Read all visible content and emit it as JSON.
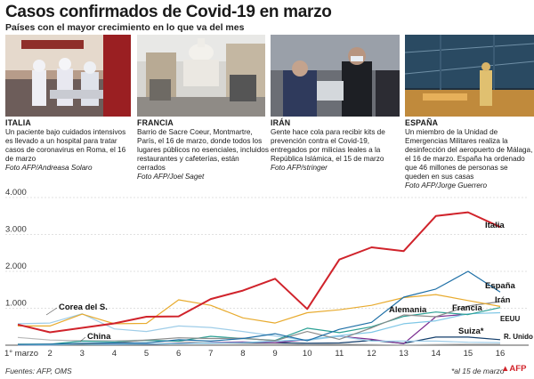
{
  "header": {
    "title": "Casos confirmados de Covid-19 en marzo",
    "subtitle": "Países con el mayor crecimiento en lo que va del mes"
  },
  "photos": [
    {
      "country": "ITALIA",
      "text": "Un paciente bajo cuidados intensivos es llevado a un hospital para tratar casos de coronavirus en Roma, el 16 de marzo",
      "credit": "Foto AFP/Andreasa Solaro"
    },
    {
      "country": "FRANCIA",
      "text": "Barrio de Sacre Coeur, Montmartre, París, el 16 de marzo, donde todos los lugares públicos no esenciales, incluidos restaurantes y cafeterías, están cerrados",
      "credit": "Foto AFP/Joel Saget"
    },
    {
      "country": "IRÁN",
      "text": "Gente hace cola para recibir kits de prevención contra el Covid-19, entregados por milicias leales a la República Islámica, el 15 de marzo",
      "credit": "Foto AFP/stringer"
    },
    {
      "country": "ESPAÑA",
      "text": "Un miembro de la Unidad de Emergencias Militares realiza la desinfección del aeropuerto de Málaga, el 16 de marzo. España ha ordenado que 46 millones de personas se queden en sus casas",
      "credit": "Foto AFP/Jorge Guerrero"
    }
  ],
  "chart_data": {
    "type": "line",
    "x": [
      "1° marzo",
      "2",
      "3",
      "4",
      "5",
      "6",
      "7",
      "8",
      "9",
      "10",
      "11",
      "12",
      "13",
      "14",
      "15",
      "16"
    ],
    "y_ticks": [
      "1.000",
      "2.000",
      "3.000",
      "4.000"
    ],
    "ylim": [
      0,
      4000
    ],
    "series": [
      {
        "name": "Italia",
        "color": "#d0232b",
        "values": [
          560,
          350,
          470,
          590,
          770,
          780,
          1250,
          1480,
          1800,
          980,
          2320,
          2650,
          2550,
          3500,
          3600,
          3200
        ]
      },
      {
        "name": "España",
        "color": "#1e6fa6",
        "values": [
          20,
          30,
          50,
          60,
          60,
          150,
          110,
          180,
          310,
          120,
          430,
          620,
          1300,
          1520,
          2000,
          1440
        ]
      },
      {
        "name": "Irán",
        "color": "#e8ab2f",
        "values": [
          520,
          520,
          840,
          580,
          590,
          1230,
          1080,
          740,
          600,
          880,
          960,
          1080,
          1290,
          1370,
          1210,
          1050
        ]
      },
      {
        "name": "Alemania",
        "color": "#8a8a8a",
        "values": [
          20,
          30,
          30,
          60,
          140,
          200,
          180,
          190,
          120,
          370,
          160,
          470,
          820,
          770,
          1060,
          1180
        ]
      },
      {
        "name": "Francia",
        "color": "#2ba094",
        "values": [
          30,
          30,
          110,
          90,
          130,
          110,
          240,
          180,
          130,
          460,
          340,
          500,
          780,
          900,
          830,
          1020
        ]
      },
      {
        "name": "EEUU",
        "color": "#7fc7e6",
        "values": [
          10,
          10,
          20,
          20,
          30,
          40,
          60,
          70,
          110,
          150,
          260,
          350,
          580,
          660,
          850,
          880
        ]
      },
      {
        "name": "Corea del S.",
        "color": "#9fcde8",
        "values": [
          580,
          600,
          850,
          440,
          370,
          520,
          480,
          370,
          250,
          130,
          240,
          110,
          110,
          110,
          80,
          70
        ]
      },
      {
        "name": "China",
        "color": "#b7b7b7",
        "values": [
          210,
          140,
          120,
          120,
          140,
          100,
          60,
          40,
          40,
          20,
          30,
          20,
          10,
          20,
          30,
          30
        ]
      },
      {
        "name": "Suiza",
        "color": "#7a2c8f",
        "values": [
          10,
          10,
          30,
          20,
          30,
          40,
          70,
          90,
          70,
          150,
          240,
          160,
          40,
          770,
          840,
          null
        ]
      },
      {
        "name": "R. Unido",
        "color": "#123d6b",
        "values": [
          10,
          10,
          20,
          30,
          30,
          50,
          60,
          50,
          70,
          50,
          60,
          130,
          50,
          220,
          220,
          150
        ]
      }
    ],
    "annotations": {
      "suiza_note": "*"
    }
  },
  "footer": {
    "sources": "Fuentes: AFP, OMS",
    "note": "*al 15 de marzo",
    "logo": "AFP"
  }
}
